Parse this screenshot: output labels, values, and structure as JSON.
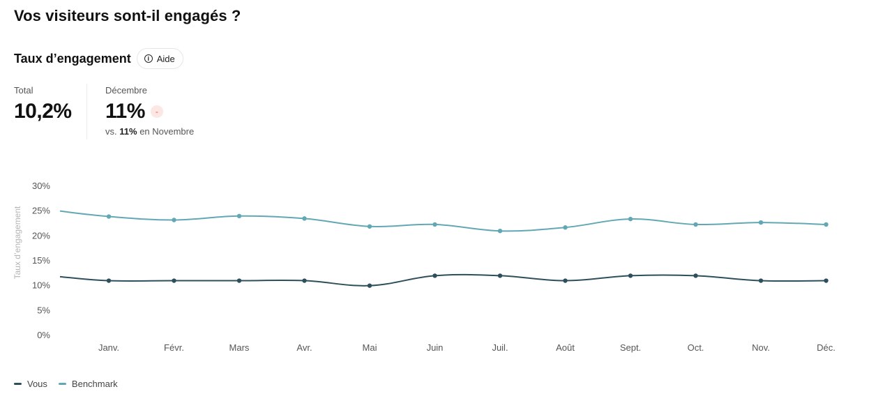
{
  "page": {
    "title": "Vos visiteurs sont-il engagés ?"
  },
  "section": {
    "title": "Taux d’engagement",
    "help_label": "Aide",
    "help_icon": "info-icon"
  },
  "stats": {
    "total_label": "Total",
    "total_value": "10,2%",
    "month_label": "Décembre",
    "month_value": "11%",
    "delta_symbol": "-",
    "comparison_prefix": "vs.",
    "comparison_value": "11%",
    "comparison_suffix": "en Novembre"
  },
  "colors": {
    "vous": "#2d4f5c",
    "benchmark": "#62a8b4",
    "delta_bg": "#fde7e4",
    "delta_fg": "#e05a4c"
  },
  "chart_data": {
    "type": "line",
    "ylabel": "Taux d’engagement",
    "ylim": [
      0,
      30
    ],
    "yticks": [
      "0%",
      "5%",
      "10%",
      "15%",
      "20%",
      "25%",
      "30%"
    ],
    "grid": false,
    "legend_position": "bottom-left",
    "categories": [
      "Janv.",
      "Févr.",
      "Mars",
      "Avr.",
      "Mai",
      "Juin",
      "Juil.",
      "Août",
      "Sept.",
      "Oct.",
      "Nov.",
      "Déc."
    ],
    "series": [
      {
        "name": "Vous",
        "color": "#2d4f5c",
        "start_value": 11.8,
        "values": [
          11,
          11,
          11,
          11,
          10,
          12,
          12,
          11,
          12,
          12,
          11,
          11
        ]
      },
      {
        "name": "Benchmark",
        "color": "#62a8b4",
        "start_value": 25,
        "values": [
          23.9,
          23.2,
          24,
          23.5,
          21.9,
          22.3,
          21,
          21.7,
          23.4,
          22.3,
          22.7,
          22.3
        ]
      }
    ]
  }
}
